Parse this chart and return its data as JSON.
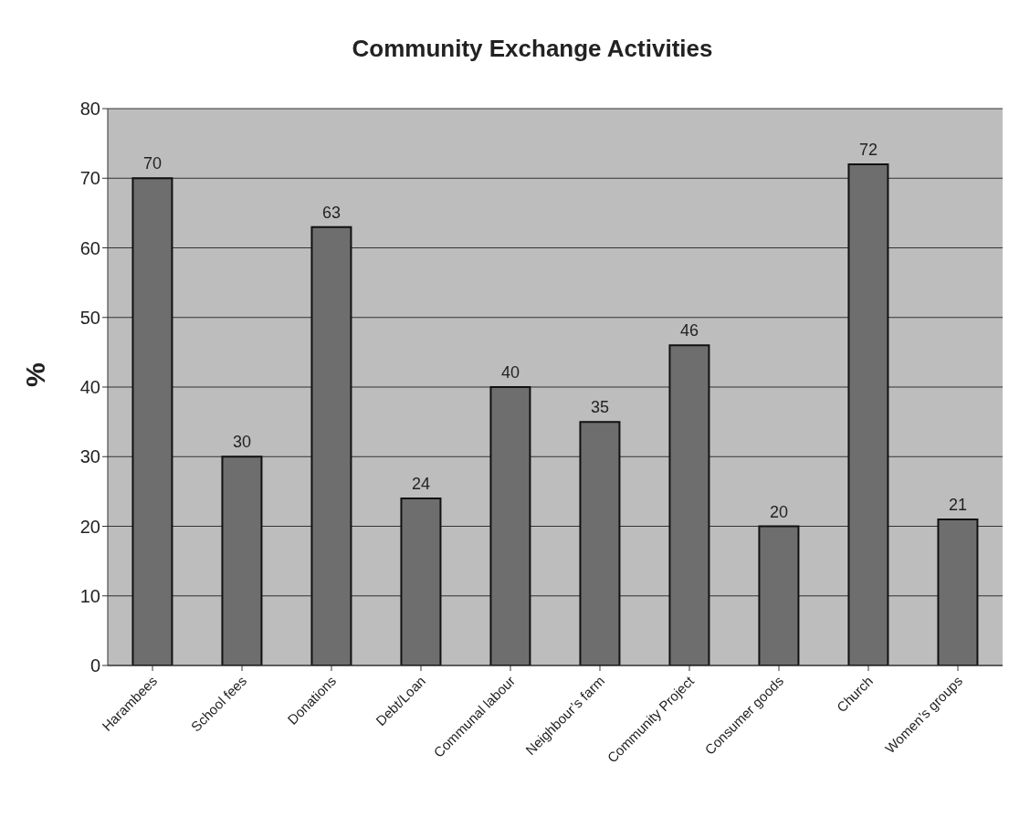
{
  "chart_data": {
    "type": "bar",
    "title": "Community Exchange Activities",
    "ylabel": "%",
    "categories": [
      "Harambees",
      "School fees",
      "Donations",
      "Debt/Loan",
      "Communal labour",
      "Neighbour’s farm",
      "Community Project",
      "Consumer goods",
      "Church",
      "Women’s groups"
    ],
    "values": [
      70,
      30,
      63,
      24,
      40,
      35,
      46,
      20,
      72,
      21
    ],
    "color": "#6e6e6e",
    "ylim": [
      0,
      80
    ],
    "yticks": [
      0,
      10,
      20,
      30,
      40,
      50,
      60,
      70,
      80
    ],
    "grid": "y",
    "data_labels": true
  }
}
